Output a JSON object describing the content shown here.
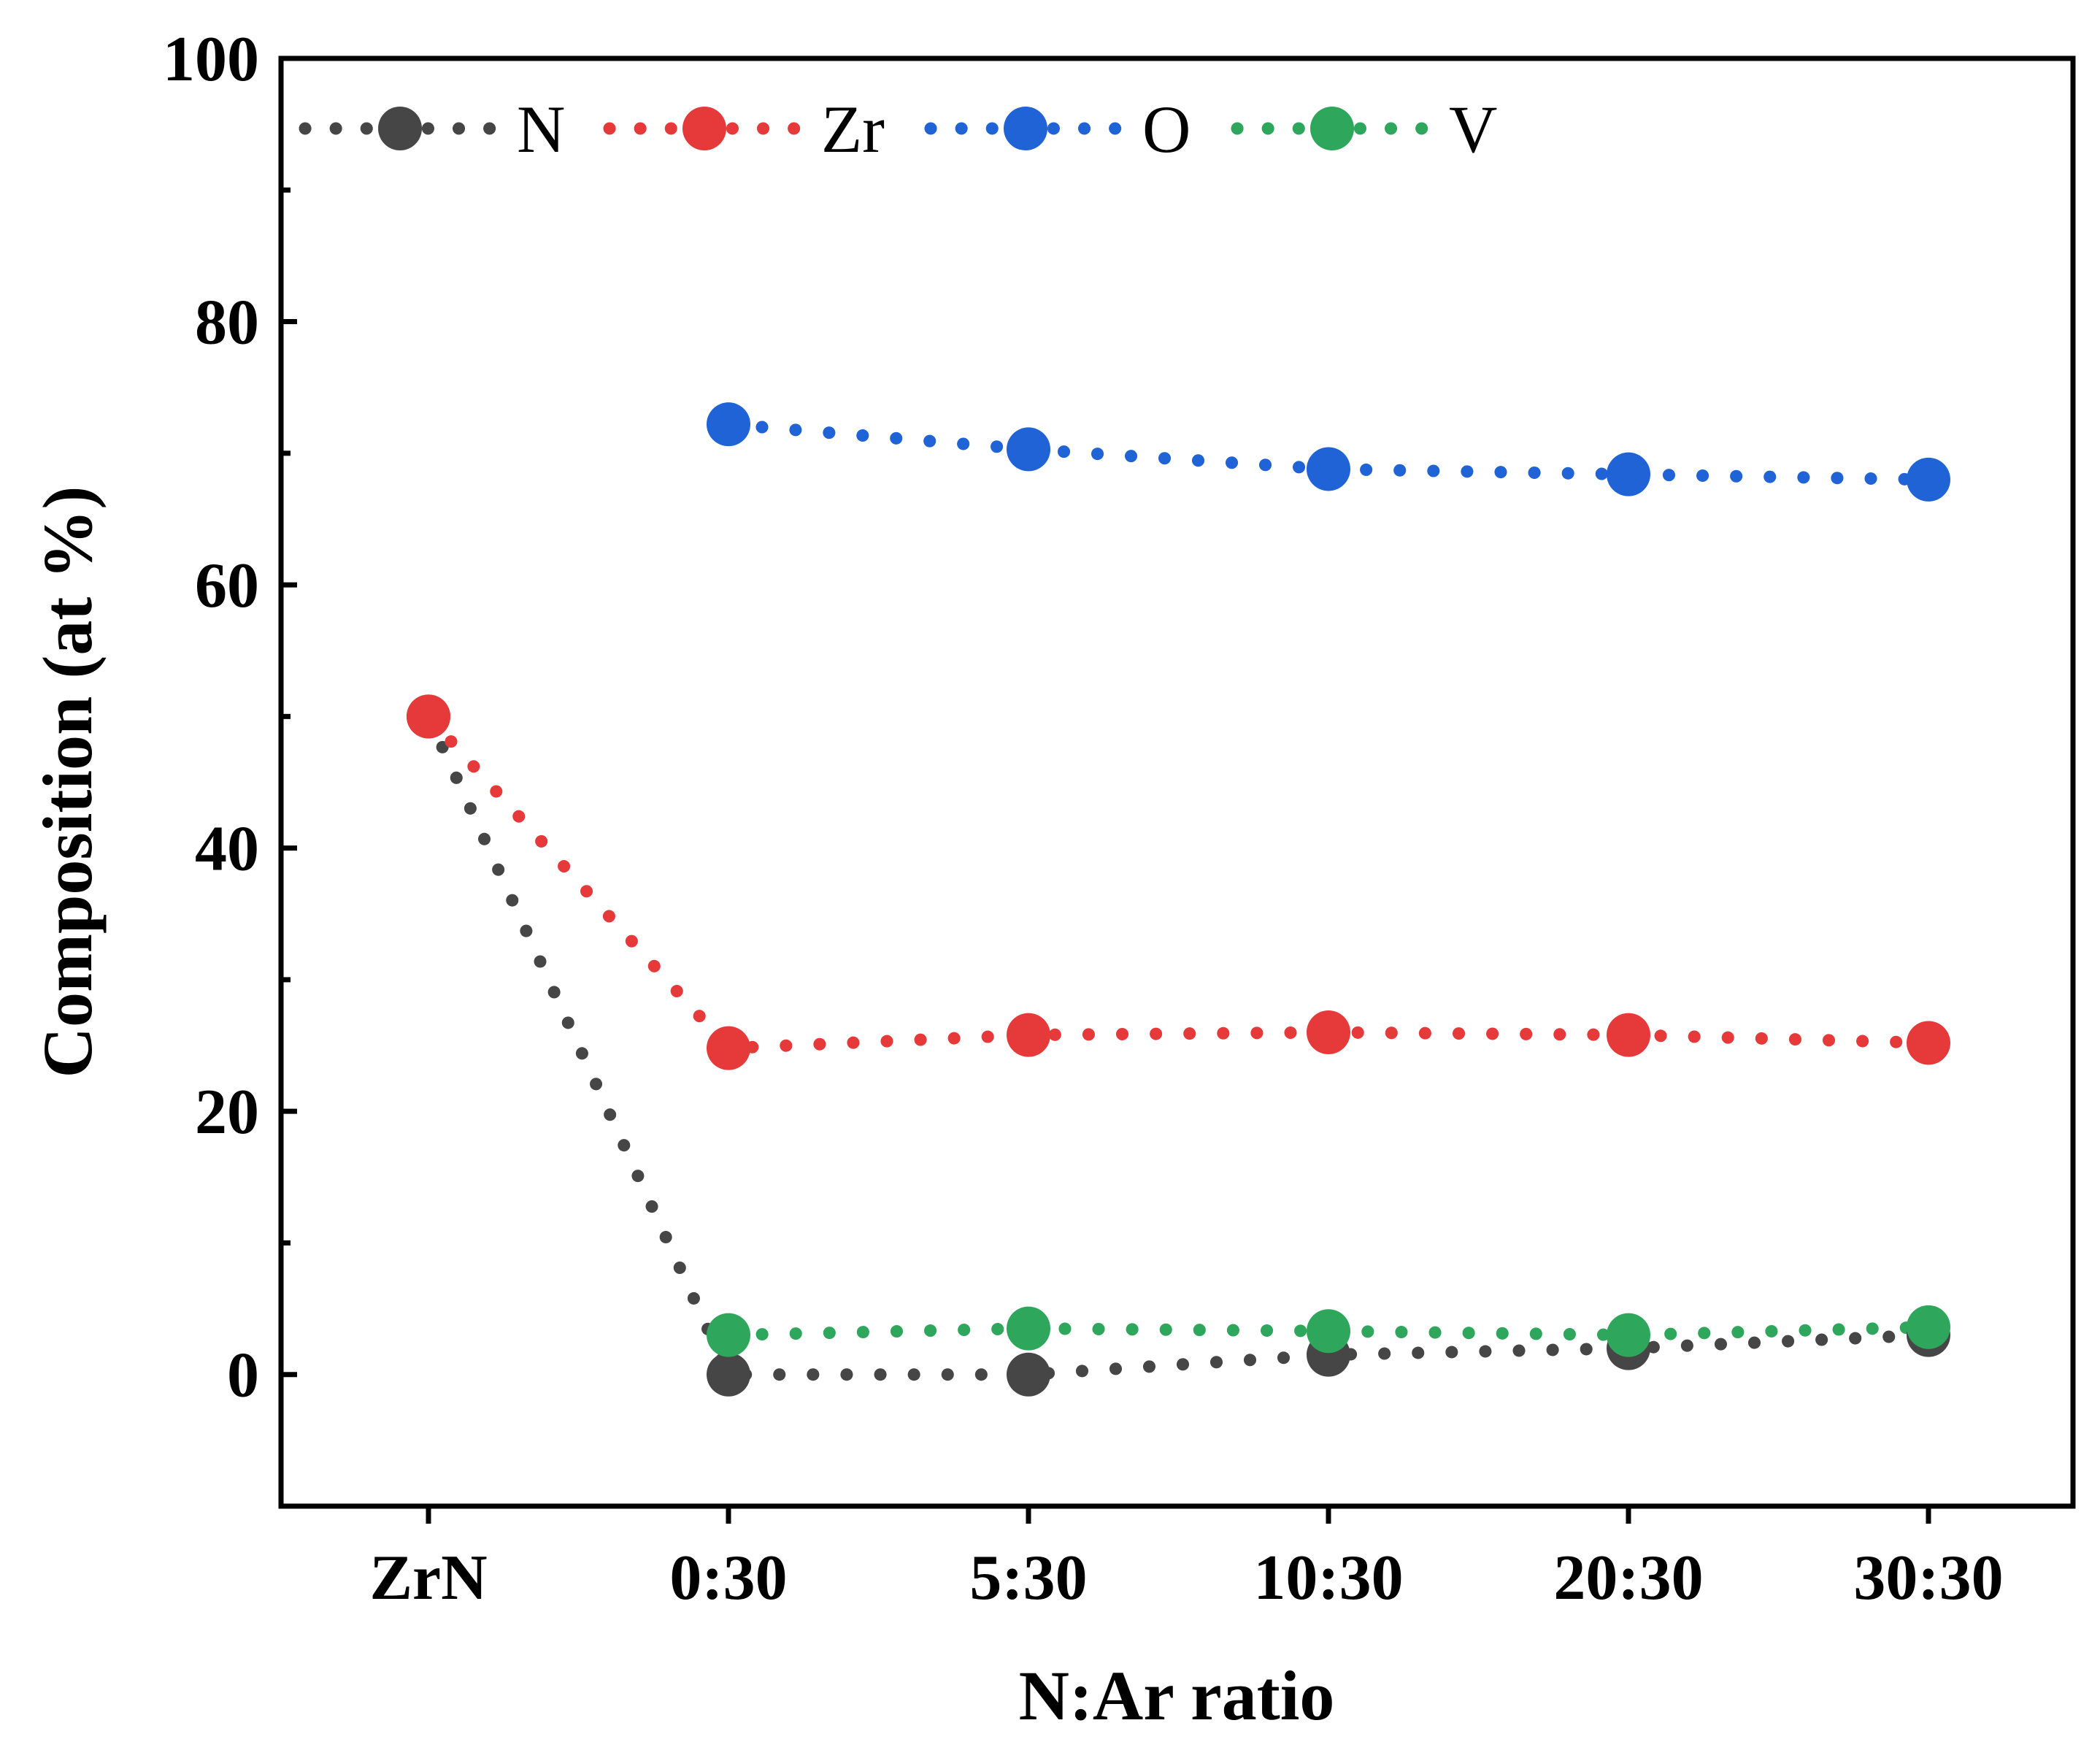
{
  "chart_data": {
    "type": "line",
    "title": "",
    "xlabel": "N:Ar ratio",
    "ylabel": "Composition (at %)",
    "categories": [
      "ZrN",
      "0:30",
      "5:30",
      "10:30",
      "20:30",
      "30:30"
    ],
    "ylim": [
      -10,
      100
    ],
    "yticks": [
      0,
      20,
      40,
      60,
      80,
      100
    ],
    "yticks_minor": [
      10,
      30,
      50,
      70,
      90
    ],
    "grid": false,
    "legend_position": "top",
    "line_style": "dotted",
    "series": [
      {
        "name": "N",
        "color": "#464646",
        "values": [
          50,
          0,
          0,
          1.5,
          2.0,
          3.0
        ]
      },
      {
        "name": "Zr",
        "color": "#e63a3a",
        "values": [
          50,
          24.8,
          25.8,
          26.0,
          25.8,
          25.2
        ]
      },
      {
        "name": "O",
        "color": "#1f63d6",
        "values": [
          null,
          72.2,
          70.3,
          68.8,
          68.4,
          68.0
        ]
      },
      {
        "name": "V",
        "color": "#2ea65b",
        "values": [
          null,
          3.0,
          3.5,
          3.3,
          3.0,
          3.6
        ]
      }
    ]
  }
}
